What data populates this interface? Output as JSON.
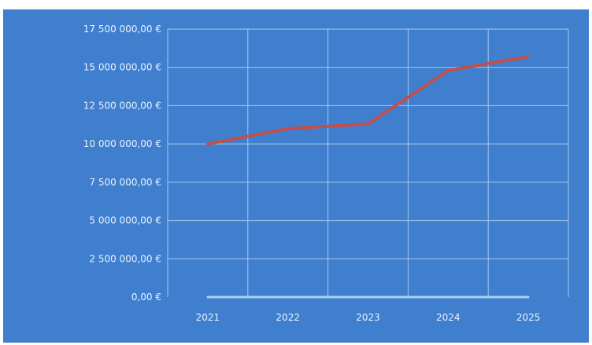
{
  "chart_data": {
    "type": "line",
    "categories": [
      "2021",
      "2022",
      "2023",
      "2024",
      "2025"
    ],
    "series": [
      {
        "values": [
          10000000,
          11000000,
          11300000,
          14800000,
          15700000
        ],
        "color": "#c0504d"
      },
      {
        "values": [
          0,
          0,
          0,
          0,
          0
        ],
        "color": "#a9cdf2"
      }
    ],
    "y_ticks": [
      "0,00 €",
      "2 500 000,00 €",
      "5 000 000,00 €",
      "7 500 000,00 €",
      "10 000 000,00 €",
      "12 500 000,00 €",
      "15 000 000,00 €",
      "17 500 000,00 €"
    ],
    "ylim": [
      0,
      17500000
    ],
    "grid": true,
    "background_color": "#3f7fce",
    "grid_color": "#a6c8ee",
    "title": "",
    "xlabel": "",
    "ylabel": ""
  }
}
